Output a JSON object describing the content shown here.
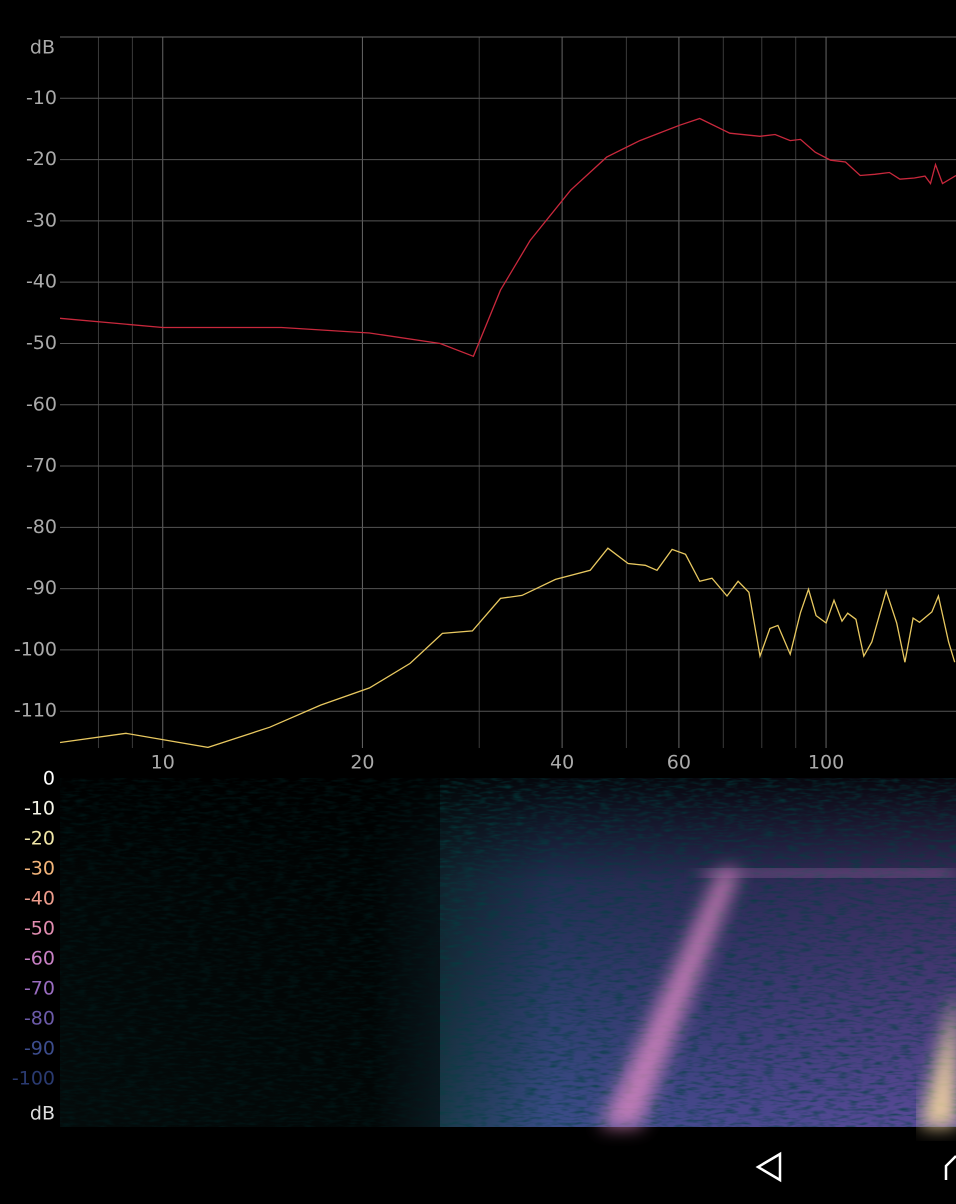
{
  "chart_data": {
    "type": "line",
    "x_scale": "log",
    "y_unit": "dB",
    "xlim": [
      7,
      157
    ],
    "ylim": [
      -116,
      0
    ],
    "xticks": [
      10,
      20,
      40,
      60,
      100
    ],
    "xgrid_minor": [
      8,
      9,
      30,
      50,
      70,
      80,
      90
    ],
    "yticks": [
      -10,
      -20,
      -30,
      -40,
      -50,
      -60,
      -70,
      -80,
      -90,
      -100,
      -110
    ],
    "grid": true,
    "series": [
      {
        "color": "#c8283c",
        "x": [
          7.0,
          10,
          15.1,
          20.5,
          26.2,
          29.4,
          32.3,
          35.8,
          41.2,
          46.7,
          52.4,
          60.1,
          64.5,
          71.6,
          79.5,
          83.8,
          88.3,
          91.5,
          96.3,
          101.6,
          107,
          112.6,
          118.4,
          124.6,
          129.2,
          135.9,
          141,
          143.7,
          146.2,
          149.8,
          157
        ],
        "values": [
          -45.9,
          -47.4,
          -47.4,
          -48.3,
          -50,
          -52.1,
          -41.3,
          -33.2,
          -25,
          -19.6,
          -16.9,
          -14.4,
          -13.3,
          -15.7,
          -16.2,
          -15.9,
          -16.9,
          -16.7,
          -18.8,
          -20.1,
          -20.4,
          -22.6,
          -22.4,
          -22.1,
          -23.2,
          -23,
          -22.7,
          -23.9,
          -20.8,
          -23.9,
          -22.6
        ]
      },
      {
        "color": "#e8c860",
        "x": [
          7.0,
          8.8,
          11.7,
          14.5,
          17.3,
          20.5,
          23.6,
          26.4,
          29.3,
          32.3,
          34.8,
          39.1,
          44.1,
          46.9,
          50.3,
          53.4,
          55.6,
          58.6,
          61.4,
          64.5,
          67.3,
          70.9,
          73.7,
          76.5,
          79.5,
          82.3,
          84.6,
          88.3,
          91.5,
          94.1,
          96.6,
          100,
          102.8,
          105.7,
          107.8,
          110.9,
          114,
          117.2,
          123.2,
          127.8,
          131.5,
          135.3,
          138.3,
          144.4,
          147.7,
          153,
          156.3
        ],
        "values": [
          -115.1,
          -113.6,
          -115.9,
          -112.6,
          -109,
          -106.2,
          -102.2,
          -97.3,
          -96.9,
          -91.6,
          -91.1,
          -88.5,
          -87,
          -83.4,
          -85.9,
          -86.2,
          -87,
          -83.6,
          -84.4,
          -88.8,
          -88.3,
          -91.2,
          -88.8,
          -90.6,
          -101,
          -96.5,
          -96,
          -100.7,
          -93.9,
          -90.1,
          -94.4,
          -95.6,
          -91.9,
          -95.3,
          -94,
          -95,
          -101,
          -98.7,
          -90.4,
          -95.6,
          -102,
          -94.8,
          -95.5,
          -93.8,
          -91.2,
          -98.7,
          -102
        ]
      }
    ]
  },
  "spectrogram": {
    "unit": "dB",
    "scale": [
      0,
      -10,
      -20,
      -30,
      -40,
      -50,
      -60,
      -70,
      -80,
      -90,
      -100
    ],
    "scale_colors": [
      "#ffffff",
      "#f4f4e8",
      "#f0e6a8",
      "#f2b47a",
      "#ec9c8c",
      "#e08cb0",
      "#c880c4",
      "#9a6cc0",
      "#6c5aa8",
      "#3c4c8c",
      "#2a3a70"
    ]
  }
}
